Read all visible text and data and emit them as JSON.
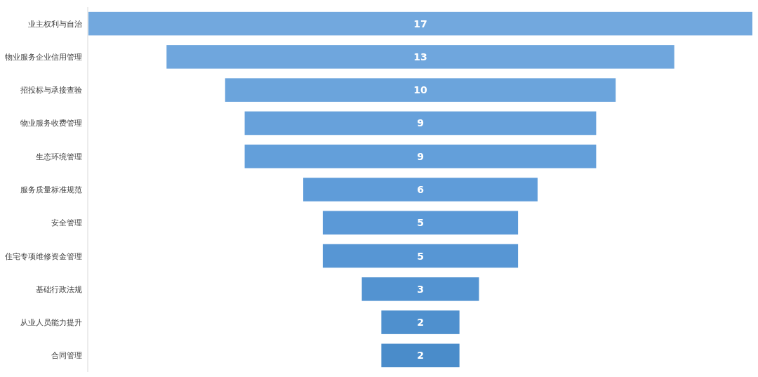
{
  "chart_data": {
    "type": "other",
    "data_labels": true,
    "categories": [
      "业主权利与自治",
      "物业服务企业信用管理",
      "招投标与承接查验",
      "物业服务收费管理",
      "生态环境管理",
      "服务质量标准规范",
      "安全管理",
      "住宅专项维修资金管理",
      "基础行政法规",
      "从业人员能力提升",
      "合同管理"
    ],
    "values": [
      17,
      13,
      10,
      9,
      9,
      6,
      5,
      5,
      3,
      2,
      2
    ],
    "colors": [
      "#72a8de",
      "#6fa6dd",
      "#6ba4dc",
      "#67a1db",
      "#639fda",
      "#5f9cd9",
      "#5b99d7",
      "#5796d4",
      "#5393d1",
      "#4f90ce",
      "#4a8cca"
    ]
  }
}
